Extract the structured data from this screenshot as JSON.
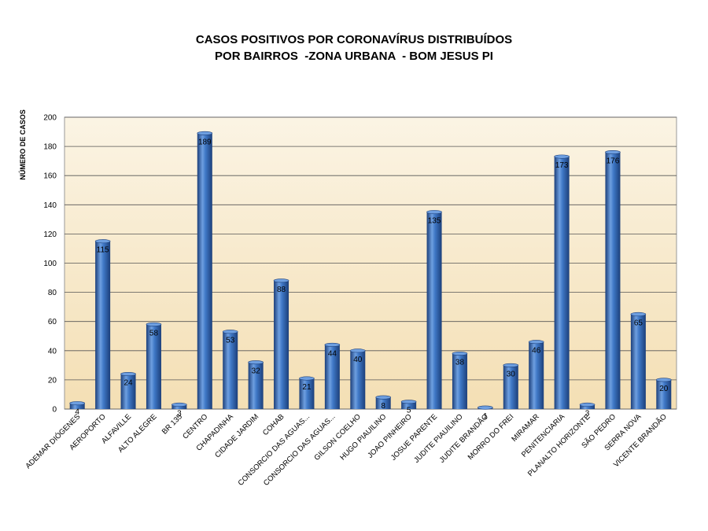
{
  "chart_data": {
    "type": "bar",
    "title_lines": [
      "CASOS POSITIVOS POR CORONAVÍRUS DISTRIBUÍDOS",
      "POR BAIRROS  -ZONA URBANA  - BOM JESUS PI"
    ],
    "ylabel": "NÚMERO DE CASOS",
    "xlabel": "",
    "ylim": [
      0,
      200
    ],
    "yticks": [
      0,
      20,
      40,
      60,
      80,
      100,
      120,
      140,
      160,
      180,
      200
    ],
    "grid": true,
    "categories": [
      "ADEMAR DIÓGENES",
      "AEROPORTO",
      "ALFAVILLE",
      "ALTO ALEGRE",
      "BR 135",
      "CENTRO",
      "CHAPADINHA",
      "CIDADE JARDIM",
      "COHAB",
      "CONSORCIO DAS AGUAS...",
      "CONSORCIO DAS AGUAS...",
      "GILSON COELHO",
      "HUGO PIAUILINO",
      "JOAO PINHEIRO",
      "JOSUE PARENTE",
      "JUDITE PIAUILINO",
      "JUDITE BRANDÃO",
      "MORRO DO FREI",
      "MIRAMAR",
      "PENITENCIARIA",
      "PLANALTO HORIZONTE",
      "SÃO PEDRO",
      "SERRA NOVA",
      "VICENTE BRANDÃO"
    ],
    "values": [
      4,
      115,
      24,
      58,
      3,
      189,
      53,
      32,
      88,
      21,
      44,
      40,
      8,
      5,
      135,
      38,
      1,
      30,
      46,
      173,
      3,
      176,
      65,
      20
    ],
    "colors": {
      "bar_dark": "#1c3f7a",
      "bar_mid": "#3f78c6",
      "bar_light": "#6e9fe0",
      "plot_bg_top": "#fbf4e4",
      "plot_bg_bottom": "#f4dfb4",
      "grid": "#555555"
    }
  }
}
